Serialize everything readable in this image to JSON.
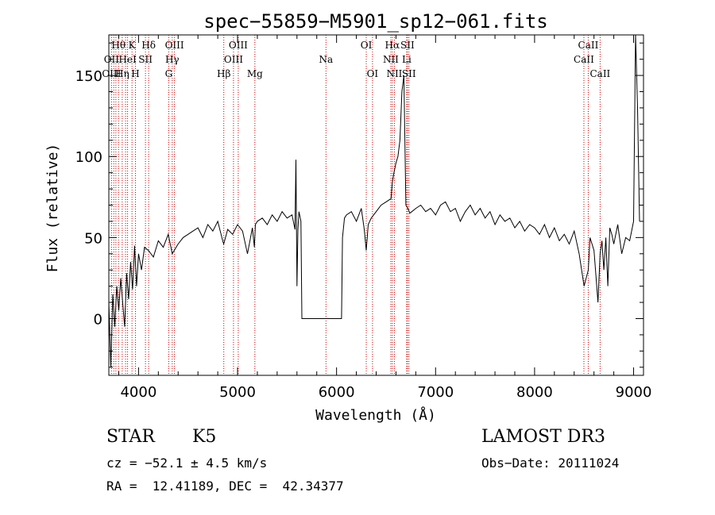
{
  "chart_data": {
    "type": "line",
    "title": "spec−55859−M5901_sp12−061.fits",
    "xlabel": "Wavelength (Å)",
    "ylabel": "Flux (relative)",
    "xlim": [
      3700,
      9100
    ],
    "ylim": [
      -35,
      175
    ],
    "xticks": [
      4000,
      5000,
      6000,
      7000,
      8000,
      9000
    ],
    "yticks": [
      0,
      50,
      100,
      150
    ],
    "grid": false,
    "legend": "none",
    "line_color": "#000000",
    "line_marker_color": "#cc0000",
    "series": [
      {
        "name": "flux",
        "x": [
          3700,
          3720,
          3740,
          3760,
          3780,
          3800,
          3820,
          3840,
          3860,
          3880,
          3900,
          3920,
          3940,
          3960,
          3980,
          4000,
          4030,
          4060,
          4100,
          4150,
          4200,
          4250,
          4300,
          4340,
          4400,
          4450,
          4500,
          4550,
          4600,
          4650,
          4700,
          4750,
          4800,
          4850,
          4860,
          4900,
          4950,
          5000,
          5050,
          5100,
          5150,
          5170,
          5180,
          5200,
          5250,
          5300,
          5350,
          5400,
          5450,
          5500,
          5550,
          5580,
          5590,
          5600,
          5610,
          5620,
          5640,
          5650,
          5700,
          5800,
          5900,
          6000,
          6050,
          6060,
          6080,
          6100,
          6150,
          6200,
          6250,
          6280,
          6300,
          6320,
          6350,
          6400,
          6450,
          6500,
          6550,
          6563,
          6580,
          6600,
          6620,
          6640,
          6660,
          6680,
          6700,
          6720,
          6740,
          6760,
          6800,
          6850,
          6900,
          6950,
          7000,
          7050,
          7100,
          7150,
          7200,
          7250,
          7300,
          7350,
          7400,
          7450,
          7500,
          7550,
          7600,
          7650,
          7700,
          7750,
          7800,
          7850,
          7900,
          7950,
          8000,
          8050,
          8100,
          8150,
          8200,
          8250,
          8300,
          8350,
          8400,
          8450,
          8500,
          8542,
          8560,
          8600,
          8640,
          8662,
          8680,
          8700,
          8720,
          8740,
          8760,
          8780,
          8800,
          8840,
          8880,
          8920,
          8960,
          9000,
          9020,
          9040,
          9060
        ],
        "y": [
          10,
          -30,
          15,
          -5,
          20,
          5,
          25,
          10,
          -5,
          28,
          12,
          35,
          18,
          45,
          20,
          40,
          30,
          44,
          42,
          38,
          48,
          44,
          52,
          40,
          46,
          50,
          52,
          54,
          56,
          50,
          58,
          54,
          60,
          48,
          46,
          55,
          52,
          58,
          54,
          40,
          56,
          44,
          58,
          60,
          62,
          58,
          64,
          60,
          66,
          62,
          64,
          55,
          98,
          20,
          55,
          66,
          60,
          0,
          0,
          0,
          0,
          0,
          0,
          50,
          62,
          64,
          66,
          60,
          68,
          55,
          42,
          58,
          62,
          66,
          70,
          72,
          74,
          84,
          90,
          96,
          100,
          110,
          140,
          150,
          70,
          68,
          65,
          66,
          68,
          70,
          66,
          68,
          64,
          70,
          72,
          66,
          68,
          60,
          66,
          70,
          64,
          68,
          62,
          66,
          58,
          64,
          60,
          62,
          56,
          60,
          54,
          58,
          56,
          52,
          58,
          50,
          56,
          48,
          52,
          46,
          54,
          40,
          20,
          30,
          50,
          42,
          10,
          40,
          48,
          30,
          50,
          20,
          56,
          52,
          46,
          58,
          40,
          50,
          48,
          60,
          175,
          130,
          60
        ]
      }
    ],
    "line_labels": [
      {
        "text": "Hθ",
        "x": 3798,
        "row": 1
      },
      {
        "text": "K",
        "x": 3934,
        "row": 1
      },
      {
        "text": "Hδ",
        "x": 4102,
        "row": 1
      },
      {
        "text": "OIII",
        "x": 4363,
        "row": 1
      },
      {
        "text": "OIII",
        "x": 5007,
        "row": 1
      },
      {
        "text": "OI",
        "x": 6300,
        "row": 1
      },
      {
        "text": "Hα",
        "x": 6563,
        "row": 1
      },
      {
        "text": "SII",
        "x": 6716,
        "row": 1
      },
      {
        "text": "CaII",
        "x": 8542,
        "row": 1
      },
      {
        "text": "OII",
        "x": 3727,
        "row": 2
      },
      {
        "text": "HeI",
        "x": 3889,
        "row": 2
      },
      {
        "text": "SII",
        "x": 4070,
        "row": 2
      },
      {
        "text": "Hγ",
        "x": 4340,
        "row": 2
      },
      {
        "text": "OIII",
        "x": 4959,
        "row": 2
      },
      {
        "text": "Na",
        "x": 5893,
        "row": 2
      },
      {
        "text": "NII",
        "x": 6548,
        "row": 2
      },
      {
        "text": "Li",
        "x": 6708,
        "row": 2
      },
      {
        "text": "CaII",
        "x": 8498,
        "row": 2
      },
      {
        "text": "OIII",
        "x": 3727,
        "row": 3
      },
      {
        "text": "Hη",
        "x": 3835,
        "row": 3
      },
      {
        "text": "H",
        "x": 3969,
        "row": 3
      },
      {
        "text": "G",
        "x": 4305,
        "row": 3
      },
      {
        "text": "Hβ",
        "x": 4861,
        "row": 3
      },
      {
        "text": "Mg",
        "x": 5175,
        "row": 3
      },
      {
        "text": "OI",
        "x": 6363,
        "row": 3
      },
      {
        "text": "NII",
        "x": 6584,
        "row": 3
      },
      {
        "text": "SII",
        "x": 6731,
        "row": 3
      },
      {
        "text": "CaII",
        "x": 8662,
        "row": 3
      }
    ],
    "line_positions": [
      3727,
      3750,
      3771,
      3798,
      3835,
      3869,
      3889,
      3934,
      3969,
      4070,
      4102,
      4305,
      4340,
      4363,
      4861,
      4959,
      5007,
      5175,
      5893,
      6300,
      6363,
      6548,
      6563,
      6584,
      6708,
      6716,
      6731,
      8498,
      8542,
      8662
    ]
  },
  "info": {
    "object_class": "STAR",
    "subclass": "K5",
    "survey": "LAMOST DR3",
    "cz": "cz = −52.1 ± 4.5 km/s",
    "obs_date": "Obs−Date: 20111024",
    "coords": "RA =  12.41189, DEC =  42.34377"
  }
}
